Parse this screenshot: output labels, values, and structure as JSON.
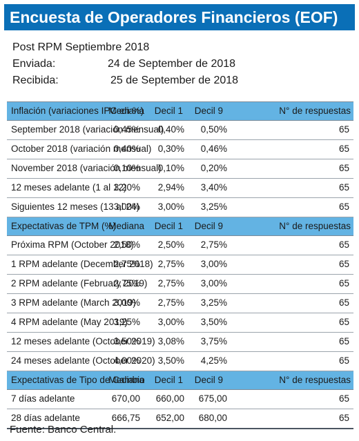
{
  "title": "Encuesta de Operadores Financieros (EOF)",
  "meta": {
    "post": "Post RPM Septiembre 2018",
    "enviada_label": "Enviada:",
    "enviada_value": "24 de September de 2018",
    "recibida_label": "Recibida:",
    "recibida_value": "25 de September de 2018"
  },
  "sections": [
    {
      "header": {
        "label": "Inflación (variaciones IPC en %)",
        "mediana": "Mediana",
        "decil1": "Decil 1",
        "decil9": "Decil 9",
        "respuestas": "N° de respuestas"
      },
      "rows": [
        {
          "label": "September 2018 (variación mensual)",
          "mediana": "0,45%",
          "decil1": "0,40%",
          "decil9": "0,50%",
          "respuestas": "65"
        },
        {
          "label": "October 2018 (variación mensual)",
          "mediana": "0,40%",
          "decil1": "0,30%",
          "decil9": "0,46%",
          "respuestas": "65"
        },
        {
          "label": "November 2018 (variación mensual)",
          "mediana": "0,10%",
          "decil1": "0,10%",
          "decil9": "0,20%",
          "respuestas": "65"
        },
        {
          "label": "12 meses adelante (1 al 12)",
          "mediana": "3,20%",
          "decil1": "2,94%",
          "decil9": "3,40%",
          "respuestas": "65"
        },
        {
          "label": "Siguientes 12 meses (13 al 24)",
          "mediana": "3,00%",
          "decil1": "3,00%",
          "decil9": "3,25%",
          "respuestas": "65"
        }
      ]
    },
    {
      "header": {
        "label": "Expectativas de TPM (%)",
        "mediana": "Mediana",
        "decil1": "Decil 1",
        "decil9": "Decil 9",
        "respuestas": "N° de respuestas"
      },
      "rows": [
        {
          "label": "Próxima  RPM  (October 2018)",
          "mediana": "2,50%",
          "decil1": "2,50%",
          "decil9": "2,75%",
          "respuestas": "65"
        },
        {
          "label": "1 RPM adelante  (December 2018)",
          "mediana": "2,75%",
          "decil1": "2,75%",
          "decil9": "3,00%",
          "respuestas": "65"
        },
        {
          "label": "2 RPM adelante  (February 2019)",
          "mediana": "2,75%",
          "decil1": "2,75%",
          "decil9": "3,00%",
          "respuestas": "65"
        },
        {
          "label": "3 RPM adelante  (March 2019)",
          "mediana": "3,00%",
          "decil1": "2,75%",
          "decil9": "3,25%",
          "respuestas": "65"
        },
        {
          "label": "4 RPM adelante  (May 2019)",
          "mediana": "3,25%",
          "decil1": "3,00%",
          "decil9": "3,50%",
          "respuestas": "65"
        },
        {
          "label": "12 meses adelante  (October 2019)",
          "mediana": "3,50%",
          "decil1": "3,08%",
          "decil9": "3,75%",
          "respuestas": "65"
        },
        {
          "label": "24 meses adelante  (October 2020)",
          "mediana": "4,00%",
          "decil1": "3,50%",
          "decil9": "4,25%",
          "respuestas": "65"
        }
      ]
    },
    {
      "header": {
        "label": "Expectativas de Tipo de Cambio",
        "mediana": "Mediana",
        "decil1": "Decil 1",
        "decil9": "Decil 9",
        "respuestas": "N° de respuestas"
      },
      "rows": [
        {
          "label": "7 días adelante",
          "mediana": "670,00",
          "decil1": "660,00",
          "decil9": "675,00",
          "respuestas": "65"
        },
        {
          "label": "28 días adelante",
          "mediana": "666,75",
          "decil1": "652,00",
          "decil9": "680,00",
          "respuestas": "65"
        }
      ]
    }
  ],
  "source": "Fuente: Banco Central.",
  "colors": {
    "title_bg": "#0a6fb7",
    "header_bg": "#63b3e3"
  }
}
